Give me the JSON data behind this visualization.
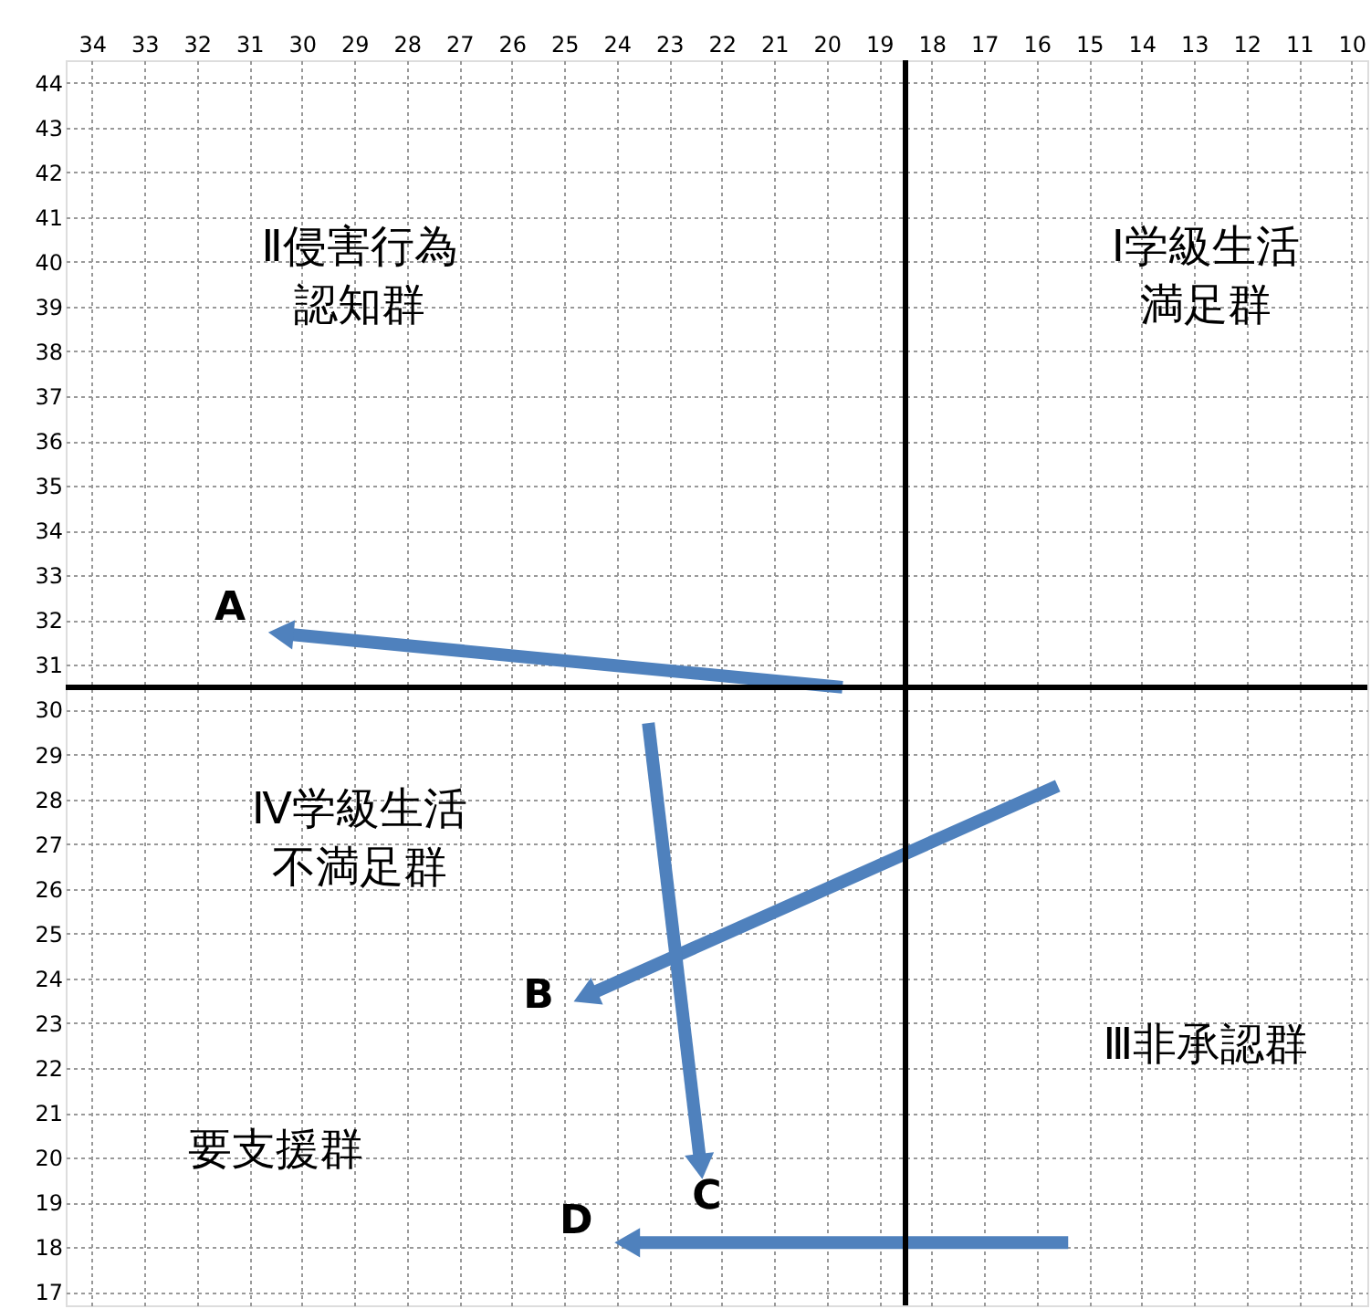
{
  "chart_data": {
    "type": "line",
    "xlim": [
      34.5,
      9.7
    ],
    "ylim": [
      16.7,
      44.5
    ],
    "xticks": [
      34,
      33,
      32,
      31,
      30,
      29,
      28,
      27,
      26,
      25,
      24,
      23,
      22,
      21,
      20,
      19,
      18,
      17,
      16,
      15,
      14,
      13,
      12,
      11,
      10
    ],
    "yticks": [
      17,
      18,
      19,
      20,
      21,
      22,
      23,
      24,
      25,
      26,
      27,
      28,
      29,
      30,
      31,
      32,
      33,
      34,
      35,
      36,
      37,
      38,
      39,
      40,
      41,
      42,
      43,
      44
    ],
    "grid": true,
    "marker": "triangle",
    "line_style": "solid",
    "series": [
      {
        "name": "A",
        "color": "#4f81bd",
        "x": [
          19.7,
          30.4
        ],
        "values": [
          30.5,
          31.7
        ]
      },
      {
        "name": "B",
        "color": "#4f81bd",
        "x": [
          15.6,
          24.6
        ],
        "values": [
          28.3,
          23.6
        ]
      },
      {
        "name": "C",
        "color": "#4f81bd",
        "x": [
          23.4,
          22.4
        ],
        "values": [
          29.7,
          19.8
        ]
      },
      {
        "name": "D",
        "color": "#4f81bd",
        "x": [
          15.4,
          23.8
        ],
        "values": [
          18.1,
          18.1
        ]
      }
    ],
    "ref_lines": [
      {
        "axis": "x",
        "value": 18.5,
        "color": "#000000"
      },
      {
        "axis": "y",
        "value": 30.5,
        "color": "#000000"
      }
    ],
    "annotations": [
      "Ⅱ侵害行為認知群",
      "Ⅰ学級生活満足群",
      "Ⅳ学級生活不満足群",
      "Ⅲ非承認群",
      "要支援群"
    ]
  }
}
